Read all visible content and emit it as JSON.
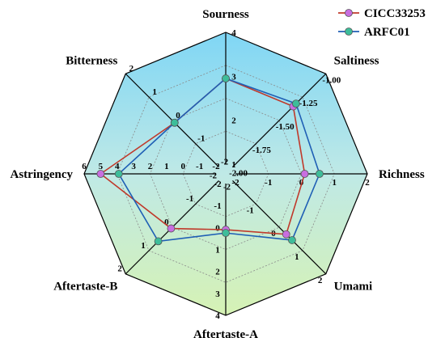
{
  "chart_data": {
    "type": "radar",
    "axes": [
      {
        "name": "Sourness",
        "ticks": [
          "1",
          "2",
          "3",
          "4"
        ],
        "min": 1,
        "max": 4
      },
      {
        "name": "Saltiness",
        "ticks": [
          "-2.00",
          "-1.75",
          "-1.50",
          "-1.25",
          "-1.00"
        ],
        "min": -2.0,
        "max": -1.0
      },
      {
        "name": "Richness",
        "ticks": [
          "-2",
          "-1",
          "0",
          "1",
          "2"
        ],
        "min": -2,
        "max": 2
      },
      {
        "name": "Umami",
        "ticks": [
          "-2",
          "-1",
          "0",
          "1",
          "2"
        ],
        "min": -2,
        "max": 2
      },
      {
        "name": "Aftertaste-A",
        "ticks": [
          "-2",
          "-1",
          "0",
          "1",
          "2",
          "3",
          "4"
        ],
        "min": -2,
        "max": 4
      },
      {
        "name": "Aftertaste-B",
        "ticks": [
          "-2",
          "-1",
          "0",
          "1",
          "2"
        ],
        "min": -2,
        "max": 2
      },
      {
        "name": "Astringency",
        "ticks": [
          "-2",
          "-1",
          "0",
          "1",
          "2",
          "3",
          "4",
          "5",
          "6"
        ],
        "min": -2,
        "max": 6
      },
      {
        "name": "Bitterness",
        "ticks": [
          "-2",
          "-1",
          "0",
          "1",
          "2"
        ],
        "min": -2,
        "max": 2
      }
    ],
    "series": [
      {
        "name": "CICC33253",
        "color": "#c0392b",
        "marker_color": "#c86ee0",
        "values": [
          2.95,
          -1.35,
          0.1,
          0.3,
          0.1,
          0.05,
          5.0,
          -0.1
        ]
      },
      {
        "name": "ARFC01",
        "color": "#1f5fb5",
        "marker_color": "#3dbd9a",
        "values": [
          2.95,
          -1.32,
          0.55,
          0.55,
          0.25,
          0.6,
          3.9,
          -0.1
        ]
      }
    ],
    "legend_position": "top-right",
    "grid": true
  }
}
